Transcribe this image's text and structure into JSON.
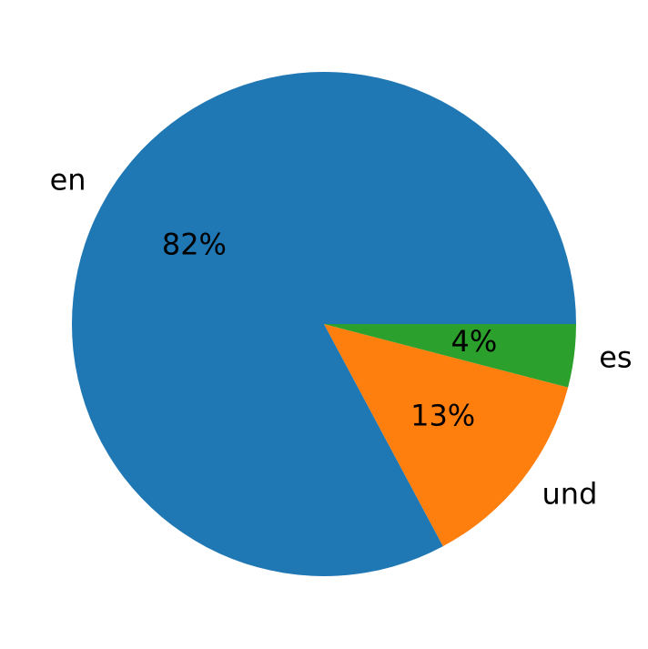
{
  "chart_data": {
    "type": "pie",
    "categories": [
      "en",
      "und",
      "es"
    ],
    "values": [
      82,
      13,
      4
    ],
    "value_labels": [
      "82%",
      "13%",
      "4%"
    ],
    "colors": [
      "#1f77b4",
      "#ff7f0e",
      "#2ca02c"
    ]
  }
}
